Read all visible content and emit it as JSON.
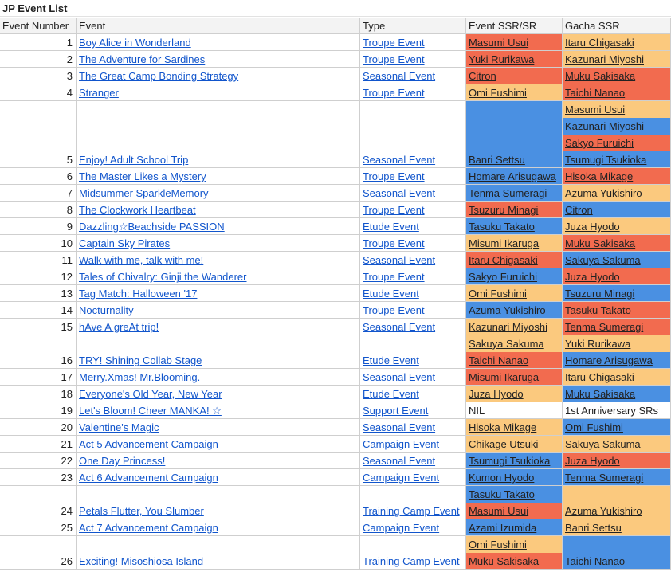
{
  "title": "JP Event List",
  "headers": [
    "Event Number",
    "Event",
    "Type",
    "Event SSR/SR",
    "Gacha SSR"
  ],
  "colors": {
    "red": "#f26b4f",
    "blue": "#4a90e2",
    "orange": "#fbc97e",
    "white": "#ffffff",
    "link": "#1155cc"
  },
  "rows": [
    {
      "num": "1",
      "event": "Boy Alice in Wonderland",
      "type": "Troupe Event",
      "ssr": [
        {
          "t": "Masumi Usui",
          "c": "red"
        }
      ],
      "gacha": [
        {
          "t": "Itaru Chigasaki",
          "c": "orange"
        }
      ]
    },
    {
      "num": "2",
      "event": "The Adventure for Sardines",
      "type": "Troupe Event",
      "ssr": [
        {
          "t": "Yuki Rurikawa",
          "c": "red"
        }
      ],
      "gacha": [
        {
          "t": "Kazunari Miyoshi",
          "c": "orange"
        }
      ]
    },
    {
      "num": "3",
      "event": "The Great Camp Bonding Strategy",
      "type": "Seasonal Event",
      "ssr": [
        {
          "t": "Citron",
          "c": "red"
        }
      ],
      "gacha": [
        {
          "t": "Muku Sakisaka",
          "c": "red"
        }
      ]
    },
    {
      "num": "4",
      "event": "Stranger",
      "type": "Troupe Event",
      "ssr": [
        {
          "t": "Omi Fushimi",
          "c": "orange"
        }
      ],
      "gacha": [
        {
          "t": "Taichi Nanao",
          "c": "red"
        }
      ]
    },
    {
      "num": "5",
      "event": "Enjoy! Adult School Trip",
      "type": "Seasonal Event",
      "ssr": [
        {
          "t": "",
          "c": "blue"
        },
        {
          "t": "",
          "c": "blue"
        },
        {
          "t": "",
          "c": "blue"
        },
        {
          "t": "Banri Settsu",
          "c": "blue"
        }
      ],
      "gacha": [
        {
          "t": "Masumi Usui",
          "c": "orange"
        },
        {
          "t": "Kazunari Miyoshi",
          "c": "blue"
        },
        {
          "t": "Sakyo Furuichi",
          "c": "red"
        },
        {
          "t": "Tsumugi Tsukioka",
          "c": "blue"
        }
      ]
    },
    {
      "num": "6",
      "event": "The Master Likes a Mystery",
      "type": "Troupe Event",
      "ssr": [
        {
          "t": "Homare Arisugawa",
          "c": "blue"
        }
      ],
      "gacha": [
        {
          "t": "Hisoka Mikage",
          "c": "red"
        }
      ]
    },
    {
      "num": "7",
      "event": "Midsummer SparkleMemory",
      "type": "Seasonal Event",
      "ssr": [
        {
          "t": "Tenma Sumeragi",
          "c": "blue"
        }
      ],
      "gacha": [
        {
          "t": "Azuma Yukishiro",
          "c": "orange"
        }
      ]
    },
    {
      "num": "8",
      "event": "The Clockwork Heartbeat",
      "type": "Troupe Event",
      "ssr": [
        {
          "t": "Tsuzuru Minagi",
          "c": "red"
        }
      ],
      "gacha": [
        {
          "t": "Citron",
          "c": "blue"
        }
      ]
    },
    {
      "num": "9",
      "event": "Dazzling☆Beachside PASSION",
      "type": "Etude Event",
      "ssr": [
        {
          "t": "Tasuku Takato",
          "c": "blue"
        }
      ],
      "gacha": [
        {
          "t": "Juza Hyodo",
          "c": "orange"
        }
      ]
    },
    {
      "num": "10",
      "event": "Captain Sky Pirates",
      "type": "Troupe Event",
      "ssr": [
        {
          "t": "Misumi Ikaruga",
          "c": "orange"
        }
      ],
      "gacha": [
        {
          "t": "Muku Sakisaka",
          "c": "red"
        }
      ]
    },
    {
      "num": "11",
      "event": "Walk with me, talk with me!",
      "type": "Seasonal Event",
      "ssr": [
        {
          "t": "Itaru Chigasaki",
          "c": "red"
        }
      ],
      "gacha": [
        {
          "t": "Sakuya Sakuma",
          "c": "blue"
        }
      ]
    },
    {
      "num": "12",
      "event": "Tales of Chivalry: Ginji the Wanderer",
      "type": "Troupe Event",
      "ssr": [
        {
          "t": "Sakyo Furuichi",
          "c": "blue"
        }
      ],
      "gacha": [
        {
          "t": "Juza Hyodo",
          "c": "red"
        }
      ]
    },
    {
      "num": "13",
      "event": "Tag Match: Halloween '17",
      "type": "Etude Event",
      "ssr": [
        {
          "t": "Omi Fushimi",
          "c": "orange"
        }
      ],
      "gacha": [
        {
          "t": "Tsuzuru Minagi",
          "c": "blue"
        }
      ]
    },
    {
      "num": "14",
      "event": "Nocturnality",
      "type": "Troupe Event",
      "ssr": [
        {
          "t": "Azuma Yukishiro",
          "c": "blue"
        }
      ],
      "gacha": [
        {
          "t": "Tasuku Takato",
          "c": "red"
        }
      ]
    },
    {
      "num": "15",
      "event": "hAve A greAt trip!",
      "type": "Seasonal Event",
      "ssr": [
        {
          "t": "Kazunari Miyoshi",
          "c": "orange"
        }
      ],
      "gacha": [
        {
          "t": "Tenma Sumeragi",
          "c": "red"
        }
      ]
    },
    {
      "num": "16",
      "event": "TRY! Shining Collab Stage",
      "type": "Etude Event",
      "ssr": [
        {
          "t": "Sakuya Sakuma",
          "c": "orange"
        },
        {
          "t": "Taichi Nanao",
          "c": "red"
        }
      ],
      "gacha": [
        {
          "t": "Yuki Rurikawa",
          "c": "orange"
        },
        {
          "t": "Homare Arisugawa",
          "c": "blue"
        }
      ]
    },
    {
      "num": "17",
      "event": "Merry.Xmas! Mr.Blooming.",
      "type": "Seasonal Event",
      "ssr": [
        {
          "t": "Misumi Ikaruga",
          "c": "red"
        }
      ],
      "gacha": [
        {
          "t": "Itaru Chigasaki",
          "c": "orange"
        }
      ]
    },
    {
      "num": "18",
      "event": "Everyone's Old Year, New Year",
      "type": "Etude Event",
      "ssr": [
        {
          "t": "Juza Hyodo",
          "c": "orange"
        }
      ],
      "gacha": [
        {
          "t": "Muku Sakisaka",
          "c": "blue"
        }
      ]
    },
    {
      "num": "19",
      "event": "Let's Bloom! Cheer MANKA! ☆",
      "type": "Support Event",
      "ssr": [
        {
          "t": "NIL",
          "c": "white",
          "plain": true
        }
      ],
      "gacha": [
        {
          "t": "1st Anniversary SRs",
          "c": "white",
          "plain": true
        }
      ]
    },
    {
      "num": "20",
      "event": "Valentine's Magic",
      "type": "Seasonal Event",
      "ssr": [
        {
          "t": "Hisoka Mikage",
          "c": "orange"
        }
      ],
      "gacha": [
        {
          "t": "Omi Fushimi",
          "c": "blue"
        }
      ]
    },
    {
      "num": "21",
      "event": "Act 5 Advancement Campaign",
      "type": "Campaign Event",
      "ssr": [
        {
          "t": "Chikage Utsuki",
          "c": "orange"
        }
      ],
      "gacha": [
        {
          "t": "Sakuya Sakuma",
          "c": "orange"
        }
      ]
    },
    {
      "num": "22",
      "event": "One Day Princess!",
      "type": "Seasonal Event",
      "ssr": [
        {
          "t": "Tsumugi Tsukioka",
          "c": "blue"
        }
      ],
      "gacha": [
        {
          "t": "Juza Hyodo",
          "c": "red"
        }
      ]
    },
    {
      "num": "23",
      "event": "Act 6 Advancement Campaign",
      "type": "Campaign Event",
      "ssr": [
        {
          "t": "Kumon Hyodo",
          "c": "blue"
        }
      ],
      "gacha": [
        {
          "t": "Tenma Sumeragi",
          "c": "blue"
        }
      ]
    },
    {
      "num": "24",
      "event": "Petals Flutter, You Slumber",
      "type": "Training Camp Event",
      "ssr": [
        {
          "t": "Tasuku Takato",
          "c": "blue"
        },
        {
          "t": "Masumi Usui",
          "c": "red"
        }
      ],
      "gacha": [
        {
          "t": "",
          "c": "orange"
        },
        {
          "t": "Azuma Yukishiro",
          "c": "orange"
        }
      ]
    },
    {
      "num": "25",
      "event": "Act 7 Advancement Campaign",
      "type": "Campaign Event",
      "ssr": [
        {
          "t": "Azami Izumida",
          "c": "blue"
        }
      ],
      "gacha": [
        {
          "t": "Banri Settsu",
          "c": "orange"
        }
      ]
    },
    {
      "num": "26",
      "event": "Exciting! Misoshiosa Island",
      "type": "Training Camp Event",
      "ssr": [
        {
          "t": "Omi Fushimi",
          "c": "orange"
        },
        {
          "t": "Muku Sakisaka",
          "c": "red"
        }
      ],
      "gacha": [
        {
          "t": "",
          "c": "blue"
        },
        {
          "t": "Taichi Nanao",
          "c": "blue"
        }
      ]
    }
  ]
}
